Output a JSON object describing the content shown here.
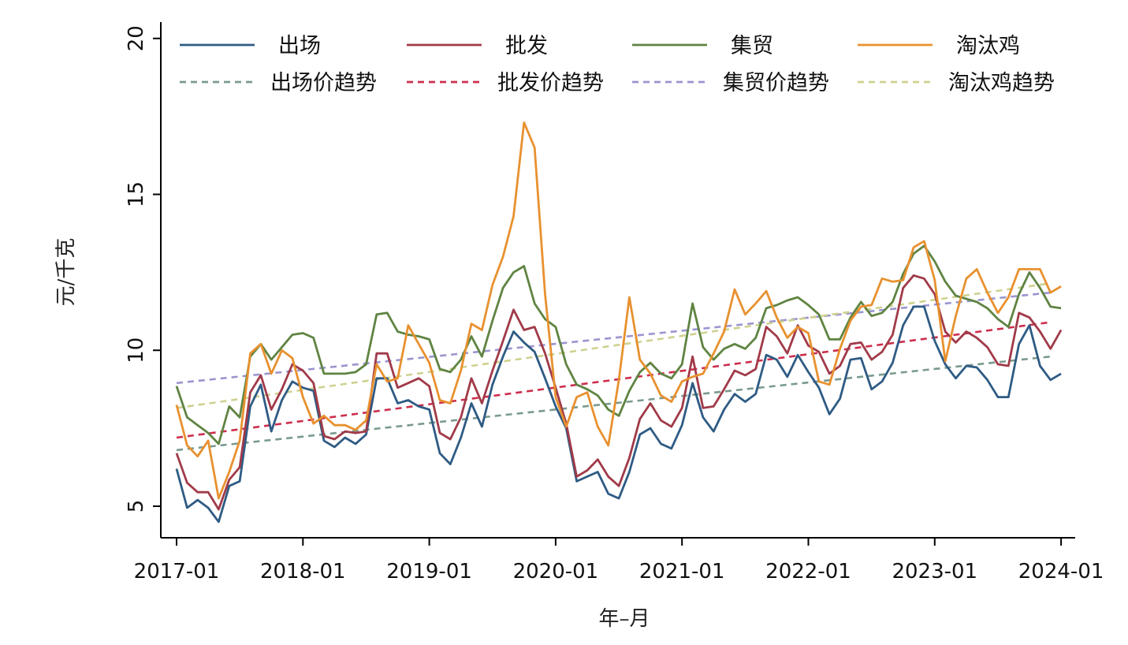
{
  "chart_data": {
    "type": "line",
    "xlabel": "年–月",
    "ylabel": "元/千克",
    "ylim": [
      4,
      20
    ],
    "yticks": [
      5,
      10,
      15,
      20
    ],
    "x_start": "2017-01",
    "x_end": "2023-12",
    "xticks": [
      "2017-01",
      "2018-01",
      "2019-01",
      "2020-01",
      "2021-01",
      "2022-01",
      "2023-01",
      "2024-01"
    ],
    "grid": false,
    "legend_position": "top",
    "series": [
      {
        "name": "出场",
        "color": "#2e5b84",
        "style": "solid",
        "values": [
          6.2,
          4.95,
          5.2,
          4.95,
          4.5,
          5.65,
          5.8,
          8.2,
          8.9,
          7.4,
          8.4,
          9.0,
          8.8,
          8.7,
          7.1,
          6.9,
          7.2,
          7.0,
          7.3,
          9.1,
          9.1,
          8.3,
          8.4,
          8.2,
          8.1,
          6.7,
          6.35,
          7.2,
          8.3,
          7.55,
          8.9,
          9.8,
          10.6,
          10.25,
          9.95,
          9.1,
          8.2,
          7.5,
          5.8,
          5.95,
          6.1,
          5.4,
          5.25,
          6.1,
          7.3,
          7.5,
          7.0,
          6.85,
          7.6,
          8.95,
          7.85,
          7.4,
          8.1,
          8.6,
          8.35,
          8.6,
          9.85,
          9.7,
          9.15,
          9.85,
          9.3,
          8.8,
          7.95,
          8.45,
          9.7,
          9.75,
          8.75,
          9.0,
          9.6,
          10.8,
          11.4,
          11.4,
          10.3,
          9.55,
          9.1,
          9.5,
          9.45,
          9.05,
          8.5,
          8.5,
          10.2,
          10.8,
          9.5,
          9.05,
          9.25
        ]
      },
      {
        "name": "批发",
        "color": "#a13a49",
        "style": "solid",
        "values": [
          6.7,
          5.75,
          5.45,
          5.45,
          4.9,
          5.85,
          6.25,
          8.65,
          9.2,
          8.1,
          8.75,
          9.55,
          9.35,
          8.95,
          7.25,
          7.15,
          7.4,
          7.35,
          7.4,
          9.9,
          9.9,
          8.8,
          8.95,
          9.1,
          8.85,
          7.35,
          7.15,
          7.85,
          9.1,
          8.3,
          9.35,
          10.3,
          11.3,
          10.65,
          10.75,
          9.9,
          8.8,
          7.65,
          5.95,
          6.15,
          6.5,
          5.95,
          5.65,
          6.55,
          7.8,
          8.3,
          7.75,
          7.55,
          8.15,
          9.8,
          8.15,
          8.2,
          8.75,
          9.35,
          9.2,
          9.4,
          10.75,
          10.45,
          9.9,
          10.8,
          10.15,
          9.95,
          9.25,
          9.5,
          10.2,
          10.25,
          9.7,
          9.95,
          10.5,
          12.0,
          12.4,
          12.3,
          11.8,
          10.6,
          10.25,
          10.6,
          10.4,
          10.1,
          9.55,
          9.5,
          11.2,
          11.05,
          10.6,
          10.05,
          10.65
        ]
      },
      {
        "name": "集贸",
        "color": "#5f8442",
        "style": "solid",
        "values": [
          8.85,
          7.85,
          7.6,
          7.35,
          7.0,
          8.2,
          7.85,
          9.8,
          10.2,
          9.7,
          10.1,
          10.5,
          10.55,
          10.4,
          9.25,
          9.25,
          9.25,
          9.3,
          9.55,
          11.15,
          11.2,
          10.6,
          10.5,
          10.45,
          10.35,
          9.4,
          9.3,
          9.7,
          10.45,
          9.8,
          10.95,
          12.0,
          12.5,
          12.7,
          11.5,
          11.0,
          10.75,
          9.55,
          8.9,
          8.75,
          8.55,
          8.1,
          7.9,
          8.7,
          9.3,
          9.6,
          9.25,
          9.1,
          9.55,
          11.5,
          10.1,
          9.7,
          10.05,
          10.2,
          10.05,
          10.4,
          11.35,
          11.45,
          11.6,
          11.7,
          11.45,
          11.15,
          10.35,
          10.35,
          11.05,
          11.55,
          11.1,
          11.2,
          11.55,
          12.45,
          13.1,
          13.35,
          12.85,
          12.2,
          11.75,
          11.65,
          11.55,
          11.35,
          11.0,
          10.75,
          11.8,
          12.5,
          12.0,
          11.4,
          11.35
        ]
      },
      {
        "name": "淘汰鸡",
        "color": "#e8912f",
        "style": "solid",
        "values": [
          8.25,
          6.95,
          6.6,
          7.1,
          5.25,
          6.1,
          7.1,
          9.9,
          10.2,
          9.25,
          10.0,
          9.75,
          8.5,
          7.65,
          7.9,
          7.6,
          7.6,
          7.45,
          7.75,
          9.55,
          9.0,
          9.1,
          10.8,
          10.2,
          9.6,
          8.4,
          8.3,
          9.35,
          10.85,
          10.65,
          12.1,
          13.0,
          14.3,
          17.3,
          16.5,
          11.8,
          8.5,
          7.55,
          8.5,
          8.65,
          7.55,
          6.95,
          9.05,
          11.7,
          9.7,
          9.25,
          8.55,
          8.35,
          9.0,
          9.15,
          9.25,
          9.9,
          10.6,
          11.95,
          11.15,
          11.5,
          11.9,
          11.05,
          10.4,
          10.75,
          10.55,
          9.0,
          8.9,
          10.05,
          10.95,
          11.4,
          11.45,
          12.3,
          12.2,
          12.25,
          13.3,
          13.5,
          12.25,
          9.65,
          11.1,
          12.3,
          12.6,
          11.85,
          11.2,
          11.7,
          12.6,
          12.6,
          12.6,
          11.85,
          12.05
        ]
      },
      {
        "name": "出场价趋势",
        "color": "#7a9a8e",
        "style": "dashed",
        "values": [
          6.8,
          9.8
        ]
      },
      {
        "name": "批发价趋势",
        "color": "#cc2e4d",
        "style": "dashed",
        "values": [
          7.2,
          10.9
        ]
      },
      {
        "name": "集贸价趋势",
        "color": "#9a95cf",
        "style": "dashed",
        "values": [
          8.95,
          11.85
        ]
      },
      {
        "name": "淘汰鸡趋势",
        "color": "#cfd18f",
        "style": "dashed",
        "values": [
          8.15,
          12.15
        ]
      }
    ]
  }
}
